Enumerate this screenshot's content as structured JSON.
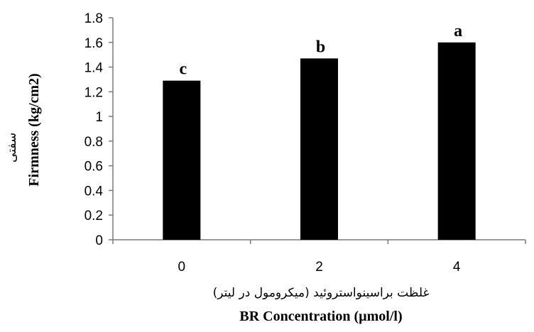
{
  "chart_data": {
    "type": "bar",
    "categories": [
      "0",
      "2",
      "4"
    ],
    "values": [
      1.29,
      1.47,
      1.6
    ],
    "significance_letters": [
      "c",
      "b",
      "a"
    ],
    "title": "",
    "xlabel": "BR Concentration (µmol/l)",
    "xlabel_fa": "غلظت براسینواستروئید (میکرومول در لیتر)",
    "ylabel": "Firmness (kg/cm2)",
    "ylabel_fa": "سفتی",
    "ylim": [
      0,
      1.8
    ],
    "ytick_step": 0.2,
    "ytick_labels": [
      "0",
      "0.2",
      "0.4",
      "0.6",
      "0.8",
      "1",
      "1.2",
      "1.4",
      "1.6",
      "1.8"
    ],
    "bar_color": "#000000",
    "grid": false,
    "legend": "none"
  }
}
